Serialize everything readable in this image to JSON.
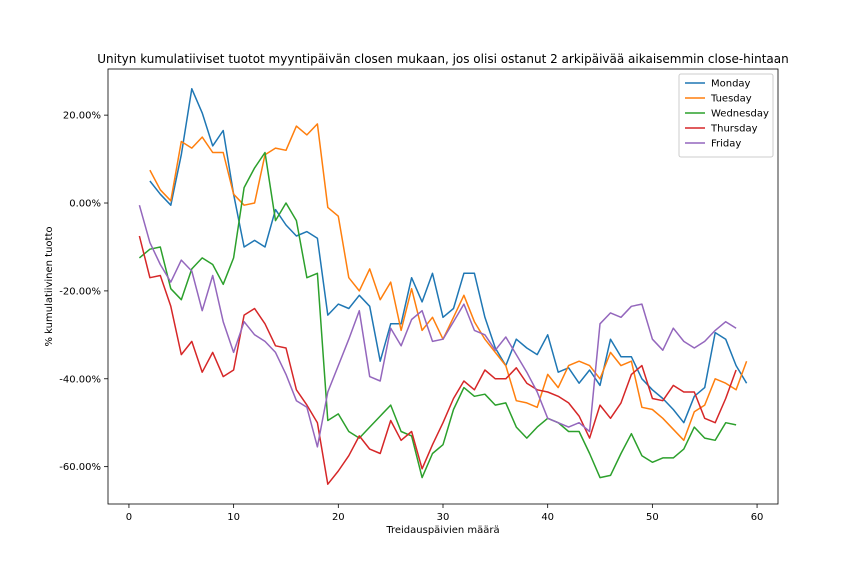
{
  "chart_data": {
    "type": "line",
    "title": "Unityn kumulatiiviset tuotot myyntipäivän closen mukaan, jos olisi ostanut 2 arkipäivää aikaisemmin close-hintaan",
    "xlabel": "Treidauspäivien määrä",
    "ylabel": "% kumulatiivinen tuotto",
    "xlim": [
      -2,
      62
    ],
    "ylim": [
      -0.685,
      0.305
    ],
    "x_ticks": [
      0,
      10,
      20,
      30,
      40,
      50,
      60
    ],
    "x_tick_labels": [
      "0",
      "10",
      "20",
      "30",
      "40",
      "50",
      "60"
    ],
    "y_ticks": [
      0.2,
      0.0,
      -0.2,
      -0.4,
      -0.6
    ],
    "y_tick_labels": [
      "20.00%",
      "0.00%",
      "-20.00%",
      "-40.00%",
      "-60.00%"
    ],
    "grid": false,
    "legend_position": "top-right",
    "series": [
      {
        "name": "Monday",
        "color": "#1f77b4",
        "x": [
          2,
          3,
          4,
          5,
          6,
          7,
          8,
          9,
          10,
          11,
          12,
          13,
          14,
          15,
          16,
          17,
          18,
          19,
          20,
          21,
          22,
          23,
          24,
          25,
          26,
          27,
          28,
          29,
          30,
          31,
          32,
          33,
          34,
          35,
          36,
          37,
          38,
          39,
          40,
          41,
          42,
          43,
          44,
          45,
          46,
          47,
          48,
          49,
          50,
          51,
          52,
          53,
          54,
          55,
          56,
          57,
          58,
          59
        ],
        "values": [
          0.05,
          0.02,
          -0.005,
          0.11,
          0.26,
          0.205,
          0.13,
          0.165,
          0.02,
          -0.1,
          -0.085,
          -0.1,
          -0.015,
          -0.05,
          -0.075,
          -0.065,
          -0.08,
          -0.255,
          -0.23,
          -0.24,
          -0.21,
          -0.235,
          -0.36,
          -0.275,
          -0.275,
          -0.17,
          -0.225,
          -0.16,
          -0.26,
          -0.24,
          -0.16,
          -0.16,
          -0.26,
          -0.33,
          -0.37,
          -0.31,
          -0.33,
          -0.345,
          -0.3,
          -0.385,
          -0.375,
          -0.41,
          -0.38,
          -0.415,
          -0.31,
          -0.35,
          -0.35,
          -0.4,
          -0.425,
          -0.445,
          -0.47,
          -0.5,
          -0.44,
          -0.42,
          -0.295,
          -0.31,
          -0.37,
          -0.41
        ]
      },
      {
        "name": "Tuesday",
        "color": "#ff7f0e",
        "x": [
          2,
          3,
          4,
          5,
          6,
          7,
          8,
          9,
          10,
          11,
          12,
          13,
          14,
          15,
          16,
          17,
          18,
          19,
          20,
          21,
          22,
          23,
          24,
          25,
          26,
          27,
          28,
          29,
          30,
          31,
          32,
          33,
          34,
          35,
          36,
          37,
          38,
          39,
          40,
          41,
          42,
          43,
          44,
          45,
          46,
          47,
          48,
          49,
          50,
          51,
          52,
          53,
          54,
          55,
          56,
          57,
          58,
          59
        ],
        "values": [
          0.075,
          0.03,
          0.005,
          0.14,
          0.125,
          0.15,
          0.115,
          0.115,
          0.02,
          -0.005,
          0.0,
          0.11,
          0.125,
          0.12,
          0.175,
          0.155,
          0.18,
          -0.01,
          -0.03,
          -0.17,
          -0.2,
          -0.15,
          -0.22,
          -0.18,
          -0.29,
          -0.195,
          -0.29,
          -0.26,
          -0.31,
          -0.26,
          -0.21,
          -0.27,
          -0.31,
          -0.34,
          -0.37,
          -0.45,
          -0.455,
          -0.465,
          -0.39,
          -0.42,
          -0.37,
          -0.36,
          -0.37,
          -0.4,
          -0.34,
          -0.37,
          -0.36,
          -0.465,
          -0.47,
          -0.49,
          -0.515,
          -0.54,
          -0.475,
          -0.46,
          -0.4,
          -0.41,
          -0.425,
          -0.36
        ]
      },
      {
        "name": "Wednesday",
        "color": "#2ca02c",
        "x": [
          1,
          2,
          3,
          4,
          5,
          6,
          7,
          8,
          9,
          10,
          11,
          12,
          13,
          14,
          15,
          16,
          17,
          18,
          19,
          20,
          21,
          22,
          23,
          24,
          25,
          26,
          27,
          28,
          29,
          30,
          31,
          32,
          33,
          34,
          35,
          36,
          37,
          38,
          39,
          40,
          41,
          42,
          43,
          44,
          45,
          46,
          47,
          48,
          49,
          50,
          51,
          52,
          53,
          54,
          55,
          56,
          57,
          58
        ],
        "values": [
          -0.125,
          -0.105,
          -0.1,
          -0.195,
          -0.22,
          -0.15,
          -0.125,
          -0.14,
          -0.185,
          -0.125,
          0.035,
          0.08,
          0.115,
          -0.04,
          0.0,
          -0.04,
          -0.17,
          -0.16,
          -0.495,
          -0.48,
          -0.52,
          -0.535,
          -0.51,
          -0.485,
          -0.46,
          -0.52,
          -0.53,
          -0.625,
          -0.57,
          -0.55,
          -0.47,
          -0.42,
          -0.44,
          -0.435,
          -0.46,
          -0.455,
          -0.51,
          -0.535,
          -0.51,
          -0.49,
          -0.5,
          -0.52,
          -0.52,
          -0.57,
          -0.625,
          -0.62,
          -0.57,
          -0.525,
          -0.575,
          -0.59,
          -0.58,
          -0.58,
          -0.56,
          -0.51,
          -0.535,
          -0.54,
          -0.5,
          -0.505
        ]
      },
      {
        "name": "Thursday",
        "color": "#d62728",
        "x": [
          1,
          2,
          3,
          4,
          5,
          6,
          7,
          8,
          9,
          10,
          11,
          12,
          13,
          14,
          15,
          16,
          17,
          18,
          19,
          20,
          21,
          22,
          23,
          24,
          25,
          26,
          27,
          28,
          29,
          30,
          31,
          32,
          33,
          34,
          35,
          36,
          37,
          38,
          39,
          40,
          41,
          42,
          43,
          44,
          45,
          46,
          47,
          48,
          49,
          50,
          51,
          52,
          53,
          54,
          55,
          56,
          57,
          58
        ],
        "values": [
          -0.075,
          -0.17,
          -0.165,
          -0.235,
          -0.345,
          -0.315,
          -0.385,
          -0.34,
          -0.395,
          -0.38,
          -0.255,
          -0.24,
          -0.275,
          -0.325,
          -0.33,
          -0.425,
          -0.46,
          -0.5,
          -0.64,
          -0.61,
          -0.575,
          -0.53,
          -0.56,
          -0.57,
          -0.495,
          -0.54,
          -0.52,
          -0.605,
          -0.55,
          -0.5,
          -0.445,
          -0.405,
          -0.425,
          -0.38,
          -0.4,
          -0.4,
          -0.375,
          -0.41,
          -0.425,
          -0.43,
          -0.44,
          -0.455,
          -0.485,
          -0.535,
          -0.46,
          -0.49,
          -0.455,
          -0.39,
          -0.37,
          -0.445,
          -0.45,
          -0.415,
          -0.43,
          -0.43,
          -0.49,
          -0.5,
          -0.445,
          -0.38
        ]
      },
      {
        "name": "Friday",
        "color": "#9467bd",
        "x": [
          1,
          2,
          3,
          4,
          5,
          6,
          7,
          8,
          9,
          10,
          11,
          12,
          13,
          14,
          15,
          16,
          17,
          18,
          19,
          20,
          21,
          22,
          23,
          24,
          25,
          26,
          27,
          28,
          29,
          30,
          31,
          32,
          33,
          34,
          35,
          36,
          37,
          38,
          39,
          40,
          41,
          42,
          43,
          44,
          45,
          46,
          47,
          48,
          49,
          50,
          51,
          52,
          53,
          54,
          55,
          56,
          57,
          58
        ],
        "values": [
          -0.005,
          -0.09,
          -0.14,
          -0.18,
          -0.13,
          -0.155,
          -0.245,
          -0.165,
          -0.27,
          -0.34,
          -0.27,
          -0.3,
          -0.315,
          -0.34,
          -0.39,
          -0.45,
          -0.465,
          -0.555,
          -0.43,
          -0.37,
          -0.31,
          -0.245,
          -0.395,
          -0.405,
          -0.285,
          -0.325,
          -0.265,
          -0.245,
          -0.315,
          -0.31,
          -0.27,
          -0.23,
          -0.29,
          -0.3,
          -0.335,
          -0.305,
          -0.345,
          -0.385,
          -0.43,
          -0.49,
          -0.5,
          -0.51,
          -0.5,
          -0.52,
          -0.275,
          -0.25,
          -0.26,
          -0.235,
          -0.23,
          -0.31,
          -0.335,
          -0.285,
          -0.315,
          -0.33,
          -0.315,
          -0.29,
          -0.27,
          -0.285
        ]
      }
    ]
  }
}
